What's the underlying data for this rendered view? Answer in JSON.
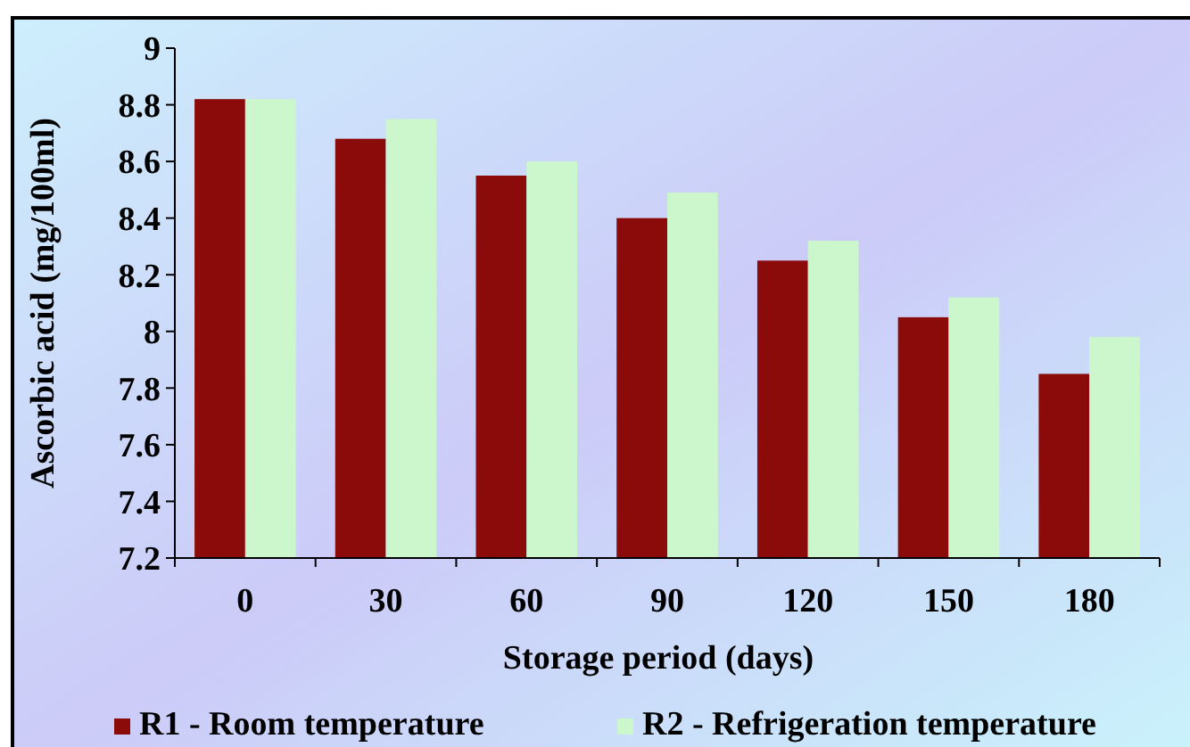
{
  "chart_data": {
    "type": "bar",
    "xlabel": "Storage period (days)",
    "ylabel": "Ascorbic acid (mg/100ml)",
    "categories": [
      "0",
      "30",
      "60",
      "90",
      "120",
      "150",
      "180"
    ],
    "series": [
      {
        "name": "R1 - Room temperature",
        "color": "#8b0a0a",
        "values": [
          8.82,
          8.68,
          8.55,
          8.4,
          8.25,
          8.05,
          7.85
        ]
      },
      {
        "name": "R2 - Refrigeration temperature",
        "color": "#ccf7cc",
        "values": [
          8.82,
          8.75,
          8.6,
          8.49,
          8.32,
          8.12,
          7.98
        ]
      }
    ],
    "ylim": [
      7.2,
      9
    ],
    "yticks": [
      7.2,
      7.4,
      7.6,
      7.8,
      8,
      8.2,
      8.4,
      8.6,
      8.8,
      9
    ],
    "grid": false,
    "legend": "bottom"
  }
}
